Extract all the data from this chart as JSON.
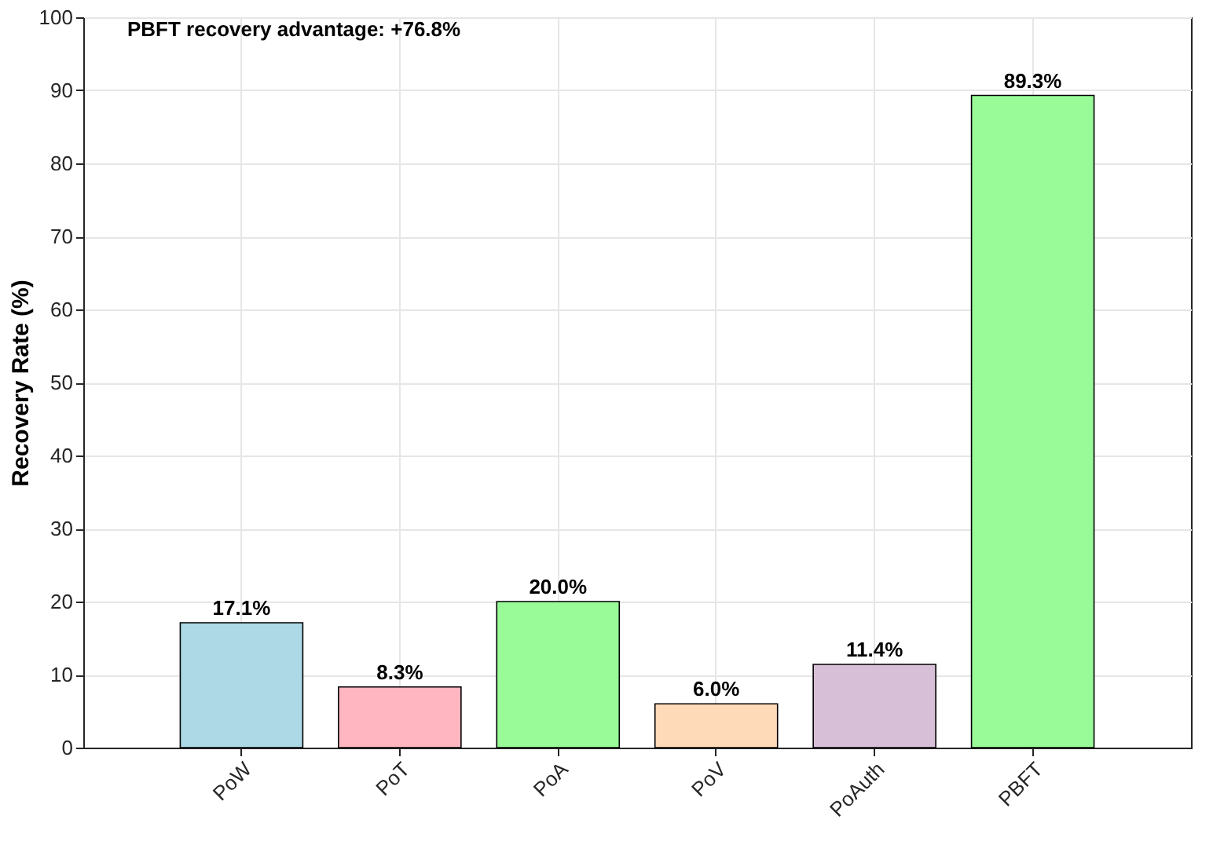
{
  "chart_data": {
    "type": "bar",
    "ylabel": "Recovery Rate (%)",
    "categories": [
      "PoW",
      "PoT",
      "PoA",
      "PoV",
      "PoAuth",
      "PBFT"
    ],
    "values": [
      17.1,
      8.3,
      20.0,
      6.0,
      11.4,
      89.3
    ],
    "colors": [
      "#add8e6",
      "#ffb6c1",
      "#98fb98",
      "#ffdab9",
      "#d8bfd8",
      "#98fb98"
    ],
    "value_labels": [
      "17.1%",
      "8.3%",
      "20.0%",
      "6.0%",
      "11.4%",
      "89.3%"
    ],
    "ylim": [
      0,
      100
    ],
    "yticks": [
      0,
      10,
      20,
      30,
      40,
      50,
      60,
      70,
      80,
      90,
      100
    ],
    "grid": true,
    "annotations": [
      "PBFT recovery advantage: +76.8%"
    ]
  }
}
